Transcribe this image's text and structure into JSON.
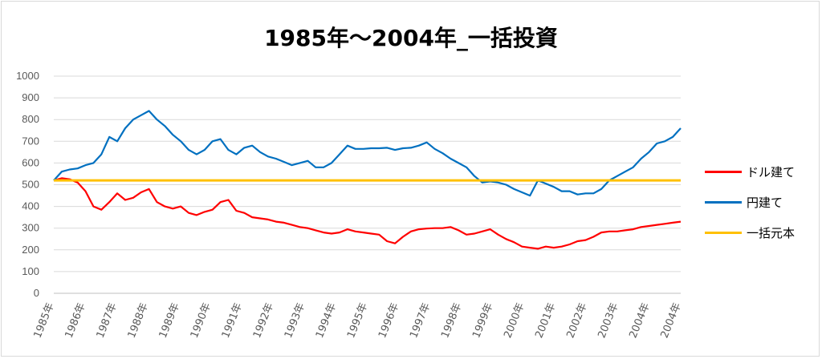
{
  "chart_data": {
    "type": "line",
    "title": "1985年～2004年_一括投資",
    "xlabel": "",
    "ylabel": "",
    "ylim": [
      0,
      1000
    ],
    "yticks": [
      "0",
      "100",
      "200",
      "300",
      "400",
      "500",
      "600",
      "700",
      "800",
      "900",
      "1000"
    ],
    "xticks": [
      "1985年",
      "1986年",
      "1987年",
      "1988年",
      "1989年",
      "1990年",
      "1991年",
      "1992年",
      "1993年",
      "1994年",
      "1995年",
      "1996年",
      "1997年",
      "1998年",
      "1999年",
      "2000年",
      "2001年",
      "2002年",
      "2003年",
      "2004年",
      "2004年"
    ],
    "grid": "horizontal",
    "legend_position": "right",
    "x": [
      1985.0,
      1985.25,
      1985.5,
      1985.75,
      1986.0,
      1986.25,
      1986.5,
      1986.75,
      1987.0,
      1987.25,
      1987.5,
      1987.75,
      1988.0,
      1988.25,
      1988.5,
      1988.75,
      1989.0,
      1989.25,
      1989.5,
      1989.75,
      1990.0,
      1990.25,
      1990.5,
      1990.75,
      1991.0,
      1991.25,
      1991.5,
      1991.75,
      1992.0,
      1992.25,
      1992.5,
      1992.75,
      1993.0,
      1993.25,
      1993.5,
      1993.75,
      1994.0,
      1994.25,
      1994.5,
      1994.75,
      1995.0,
      1995.25,
      1995.5,
      1995.75,
      1996.0,
      1996.25,
      1996.5,
      1996.75,
      1997.0,
      1997.25,
      1997.5,
      1997.75,
      1998.0,
      1998.25,
      1998.5,
      1998.75,
      1999.0,
      1999.25,
      1999.5,
      1999.75,
      2000.0,
      2000.25,
      2000.5,
      2000.75,
      2001.0,
      2001.25,
      2001.5,
      2001.75,
      2002.0,
      2002.25,
      2002.5,
      2002.75,
      2003.0,
      2003.25,
      2003.5,
      2003.75,
      2004.0,
      2004.25,
      2004.5,
      2004.75
    ],
    "series": [
      {
        "name": "ドル建て",
        "color": "#ff0000",
        "values": [
          520,
          530,
          525,
          510,
          470,
          400,
          385,
          420,
          460,
          430,
          440,
          465,
          480,
          420,
          400,
          390,
          400,
          370,
          360,
          375,
          385,
          420,
          430,
          380,
          370,
          350,
          345,
          340,
          330,
          325,
          315,
          305,
          300,
          290,
          280,
          275,
          280,
          295,
          285,
          280,
          275,
          270,
          240,
          230,
          260,
          285,
          295,
          298,
          300,
          300,
          305,
          290,
          270,
          275,
          285,
          295,
          270,
          250,
          235,
          215,
          210,
          205,
          215,
          210,
          215,
          225,
          240,
          245,
          260,
          280,
          285,
          285,
          290,
          295,
          305,
          310,
          315,
          320,
          325,
          330
        ]
      },
      {
        "name": "円建て",
        "color": "#0070c0",
        "values": [
          520,
          560,
          570,
          575,
          590,
          600,
          640,
          720,
          700,
          760,
          800,
          820,
          840,
          800,
          770,
          730,
          700,
          660,
          640,
          660,
          700,
          710,
          660,
          640,
          670,
          680,
          650,
          630,
          620,
          605,
          590,
          600,
          610,
          580,
          580,
          600,
          640,
          680,
          665,
          665,
          668,
          668,
          670,
          660,
          668,
          670,
          680,
          695,
          665,
          645,
          620,
          600,
          580,
          540,
          510,
          515,
          510,
          500,
          480,
          465,
          450,
          520,
          505,
          490,
          470,
          470,
          455,
          460,
          460,
          480,
          520,
          540,
          560,
          580,
          620,
          650,
          690,
          700,
          720,
          760
        ]
      },
      {
        "name": "一括元本",
        "color": "#ffc000",
        "values": [
          520,
          520,
          520,
          520,
          520,
          520,
          520,
          520,
          520,
          520,
          520,
          520,
          520,
          520,
          520,
          520,
          520,
          520,
          520,
          520,
          520,
          520,
          520,
          520,
          520,
          520,
          520,
          520,
          520,
          520,
          520,
          520,
          520,
          520,
          520,
          520,
          520,
          520,
          520,
          520,
          520,
          520,
          520,
          520,
          520,
          520,
          520,
          520,
          520,
          520,
          520,
          520,
          520,
          520,
          520,
          520,
          520,
          520,
          520,
          520,
          520,
          520,
          520,
          520,
          520,
          520,
          520,
          520,
          520,
          520,
          520,
          520,
          520,
          520,
          520,
          520,
          520,
          520,
          520,
          520
        ]
      }
    ]
  }
}
